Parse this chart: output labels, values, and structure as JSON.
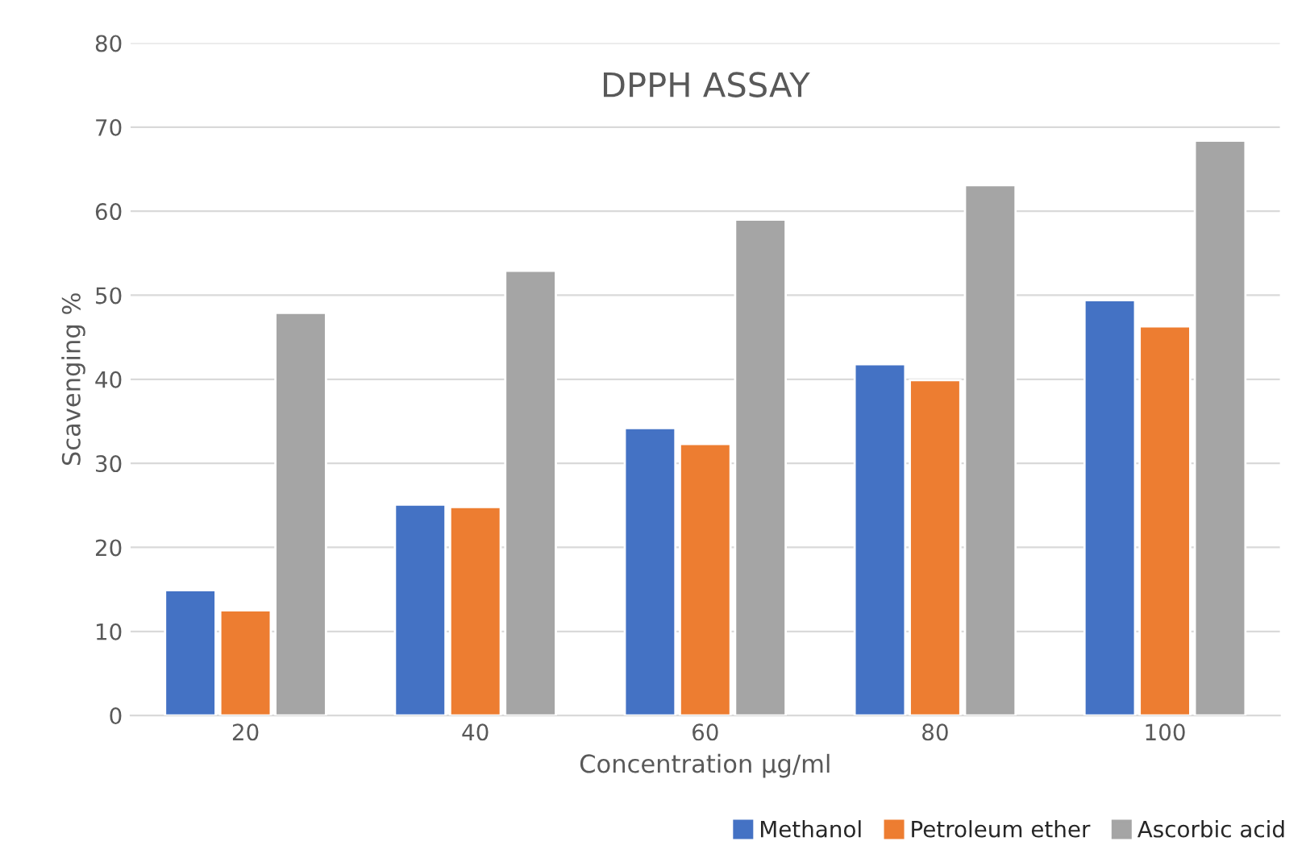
{
  "chart_data": {
    "type": "bar",
    "title": "DPPH ASSAY",
    "xlabel": "Concentration µg/ml",
    "ylabel": "Scavenging %",
    "categories": [
      "20",
      "40",
      "60",
      "80",
      "100"
    ],
    "series": [
      {
        "name": "Methanol",
        "color": "#4472c4",
        "values": [
          14.9,
          25.1,
          34.2,
          41.8,
          49.4
        ]
      },
      {
        "name": "Petroleum ether",
        "color": "#ed7d31",
        "values": [
          12.5,
          24.8,
          32.3,
          39.9,
          46.3
        ]
      },
      {
        "name": "Ascorbic acid",
        "color": "#a5a5a5",
        "values": [
          47.9,
          52.9,
          59.0,
          63.1,
          68.4
        ]
      }
    ],
    "ylim": [
      0,
      80
    ],
    "yticks": [
      0,
      10,
      20,
      30,
      40,
      50,
      60,
      70,
      80
    ],
    "grid": "y",
    "legend": "bottom"
  }
}
